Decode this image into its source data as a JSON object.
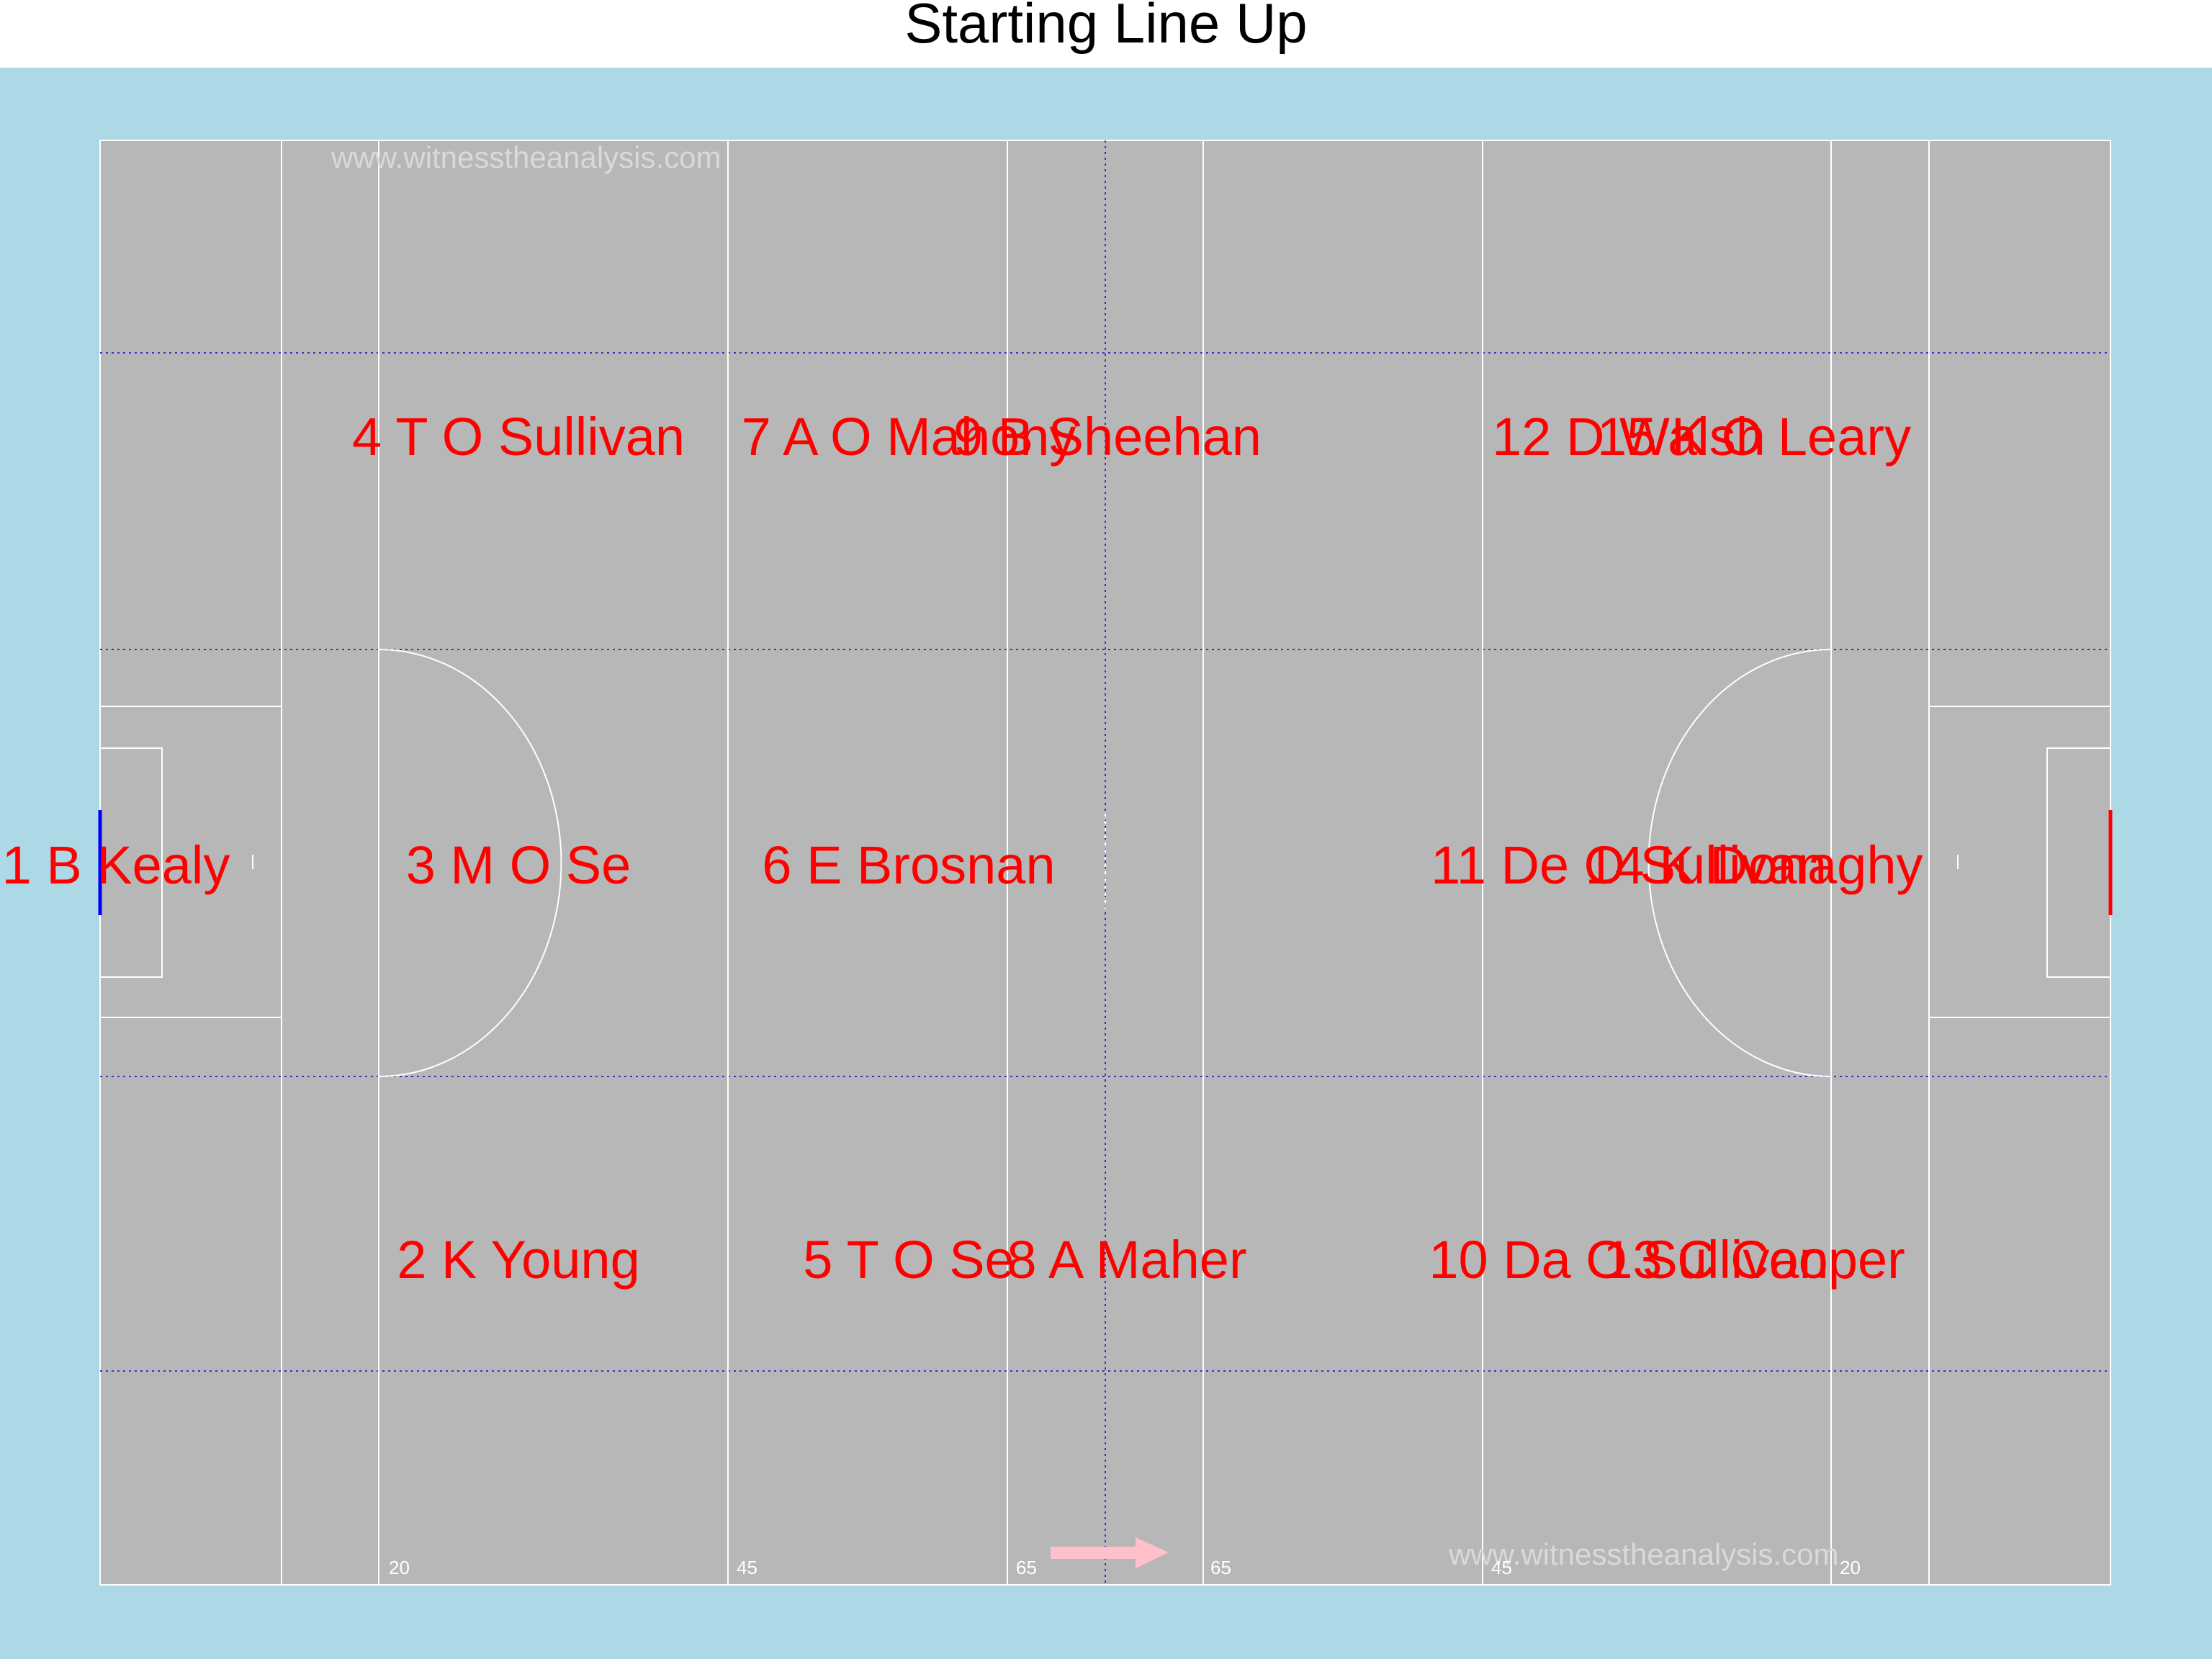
{
  "title": "Starting Line Up",
  "colors": {
    "panel_background": "#add8e6",
    "pitch": "#b7b7b7",
    "pitch_lines": "#ffffff",
    "zone_lines": "#3333cc",
    "player_text": "#ff0000",
    "left_goal": "#0000ff",
    "right_goal": "#ff0000",
    "watermark": "#d9d9d9",
    "direction_arrow": "#ffc0cb"
  },
  "watermark_text": "www.witnesstheanalysis.com",
  "direction_arrow_icon": "right-arrow-icon",
  "yard_markers": [
    "20",
    "45",
    "65",
    "65",
    "45",
    "20"
  ],
  "players": [
    {
      "label": "1 B Kealy"
    },
    {
      "label": "2 K Young"
    },
    {
      "label": "3 M O Se"
    },
    {
      "label": "4 T O Sullivan"
    },
    {
      "label": "5 T O Se"
    },
    {
      "label": "6 E Brosnan"
    },
    {
      "label": "7 A O Mahony"
    },
    {
      "label": "8 A Maher"
    },
    {
      "label": "9 B Sheehan"
    },
    {
      "label": "10 Da O Sullivan"
    },
    {
      "label": "11 De O Sullivan"
    },
    {
      "label": "12 D Walsh"
    },
    {
      "label": "13 C Cooper"
    },
    {
      "label": "14 K Donaghy"
    },
    {
      "label": "15 K O Leary"
    }
  ]
}
